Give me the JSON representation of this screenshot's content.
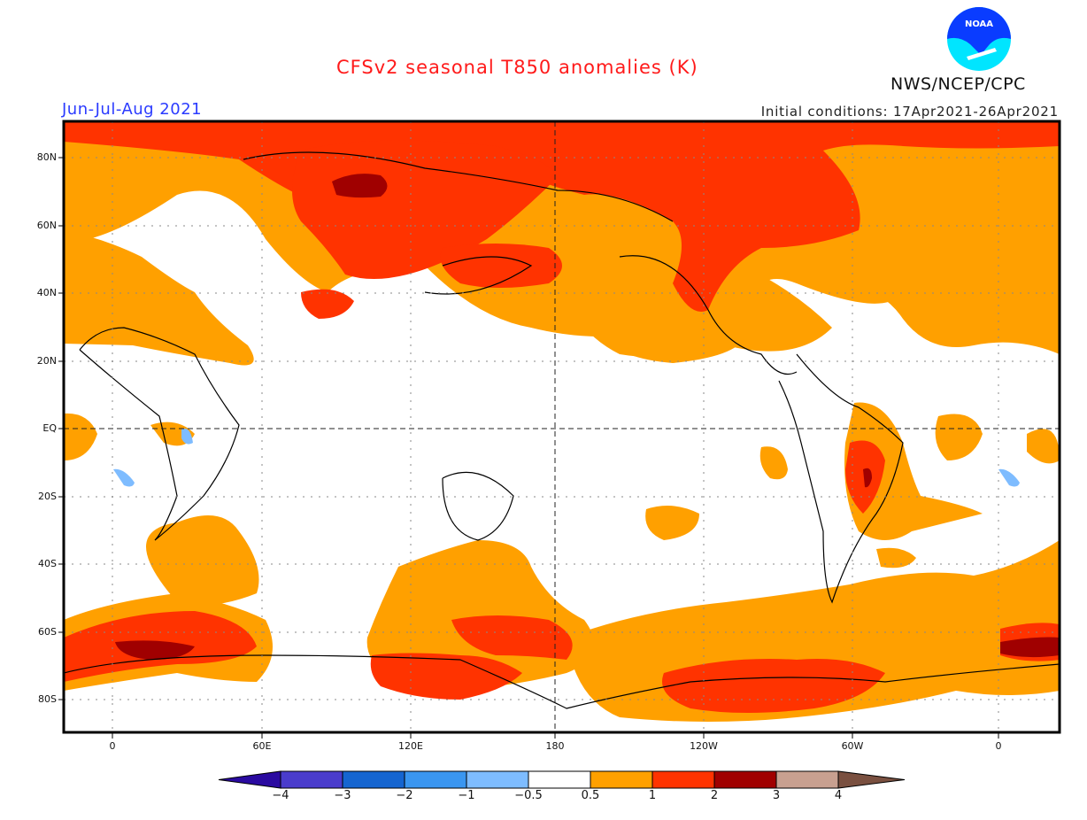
{
  "header": {
    "title": "CFSv2 seasonal T850 anomalies (K)",
    "season": "Jun-Jul-Aug 2021",
    "initial_conditions": "Initial conditions: 17Apr2021-26Apr2021",
    "agency": "NWS/NCEP/CPC",
    "logo_text": "NOAA"
  },
  "map": {
    "lat_labels": [
      "80N",
      "60N",
      "40N",
      "20N",
      "EQ",
      "20S",
      "40S",
      "60S",
      "80S"
    ],
    "lon_labels": [
      "0",
      "60E",
      "120E",
      "180",
      "120W",
      "60W",
      "0"
    ],
    "lon_range": "20W to 20E (wrapping 400 degrees)",
    "lat_range": "90S to 90N"
  },
  "colorbar": {
    "labels": [
      "-4",
      "-3",
      "-2",
      "-1",
      "-0.5",
      "0.5",
      "1",
      "2",
      "3",
      "4"
    ],
    "colors": [
      "#2a0aa0",
      "#4a3ccc",
      "#1565d0",
      "#3a96f0",
      "#7ebcff",
      "#ffffff",
      "#ffa000",
      "#ff3300",
      "#a00000",
      "#c8a090",
      "#7a5040"
    ],
    "units": "K"
  },
  "colors": {
    "title": "#ff1a1a",
    "season": "#2b3bff",
    "anom_05_1": "#ffa000",
    "anom_1_2": "#ff3300",
    "anom_2_3": "#a00000",
    "anom_neg_05_1": "#7ebcff"
  }
}
